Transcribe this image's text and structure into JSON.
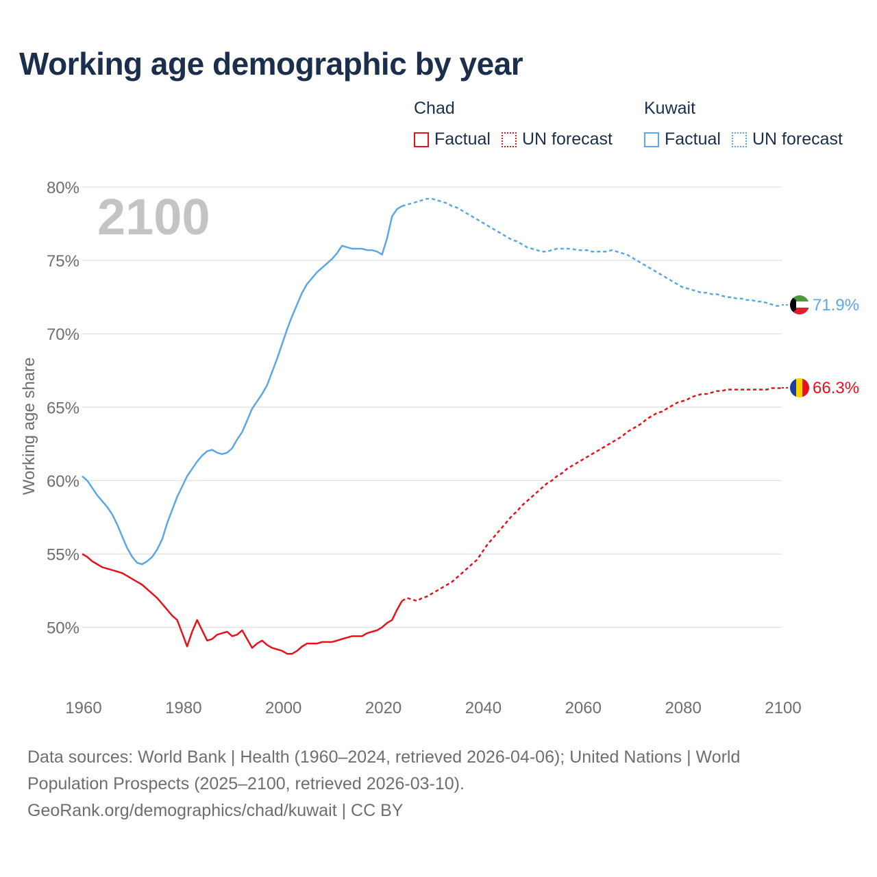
{
  "title": "Working age demographic by year",
  "legend": {
    "groups": [
      {
        "name": "Chad",
        "color": "#e8101a",
        "factual": "Factual",
        "forecast": "UN forecast"
      },
      {
        "name": "Kuwait",
        "color": "#5ba7e4",
        "factual": "Factual",
        "forecast": "UN forecast"
      }
    ]
  },
  "year_watermark": "2100",
  "footer": {
    "line1": "Data sources: World Bank | Health (1960–2024, retrieved 2026-04-06); United Nations | World",
    "line2": "Population Prospects (2025–2100, retrieved 2026-03-10).",
    "line3": "GeoRank.org/demographics/chad/kuwait | CC BY"
  },
  "chart_data": {
    "type": "line",
    "title": "Working age demographic by year",
    "xlabel": "",
    "ylabel": "Working age share",
    "xlim": [
      1960,
      2100
    ],
    "ylim": [
      45.5,
      80
    ],
    "x_ticks": [
      1960,
      1980,
      2000,
      2020,
      2040,
      2060,
      2080,
      2100
    ],
    "x_tick_labels": [
      "1960",
      "1980",
      "2000",
      "2020",
      "2040",
      "2060",
      "2080",
      "2100"
    ],
    "y_ticks": [
      50,
      55,
      60,
      65,
      70,
      75,
      80
    ],
    "y_tick_labels": [
      "50%",
      "55%",
      "60%",
      "65%",
      "70%",
      "75%",
      "80%"
    ],
    "grid": true,
    "factual_end_year": 2024,
    "series": [
      {
        "name": "Chad",
        "color": "#e8101a",
        "end_label": "66.3%",
        "flag": "chad",
        "points": [
          [
            1960,
            55.0
          ],
          [
            1961,
            54.8
          ],
          [
            1962,
            54.5
          ],
          [
            1963,
            54.3
          ],
          [
            1964,
            54.1
          ],
          [
            1965,
            54.0
          ],
          [
            1966,
            53.9
          ],
          [
            1967,
            53.8
          ],
          [
            1968,
            53.7
          ],
          [
            1969,
            53.5
          ],
          [
            1970,
            53.3
          ],
          [
            1971,
            53.1
          ],
          [
            1972,
            52.9
          ],
          [
            1973,
            52.6
          ],
          [
            1974,
            52.3
          ],
          [
            1975,
            52.0
          ],
          [
            1976,
            51.6
          ],
          [
            1977,
            51.2
          ],
          [
            1978,
            50.8
          ],
          [
            1979,
            50.5
          ],
          [
            1980,
            49.6
          ],
          [
            1981,
            48.7
          ],
          [
            1982,
            49.7
          ],
          [
            1983,
            50.5
          ],
          [
            1984,
            49.8
          ],
          [
            1985,
            49.1
          ],
          [
            1986,
            49.2
          ],
          [
            1987,
            49.5
          ],
          [
            1988,
            49.6
          ],
          [
            1989,
            49.7
          ],
          [
            1990,
            49.4
          ],
          [
            1991,
            49.5
          ],
          [
            1992,
            49.8
          ],
          [
            1993,
            49.2
          ],
          [
            1994,
            48.6
          ],
          [
            1995,
            48.9
          ],
          [
            1996,
            49.1
          ],
          [
            1997,
            48.8
          ],
          [
            1998,
            48.6
          ],
          [
            1999,
            48.5
          ],
          [
            2000,
            48.4
          ],
          [
            2001,
            48.2
          ],
          [
            2002,
            48.2
          ],
          [
            2003,
            48.4
          ],
          [
            2004,
            48.7
          ],
          [
            2005,
            48.9
          ],
          [
            2006,
            48.9
          ],
          [
            2007,
            48.9
          ],
          [
            2008,
            49.0
          ],
          [
            2009,
            49.0
          ],
          [
            2010,
            49.0
          ],
          [
            2011,
            49.1
          ],
          [
            2012,
            49.2
          ],
          [
            2013,
            49.3
          ],
          [
            2014,
            49.4
          ],
          [
            2015,
            49.4
          ],
          [
            2016,
            49.4
          ],
          [
            2017,
            49.6
          ],
          [
            2018,
            49.7
          ],
          [
            2019,
            49.8
          ],
          [
            2020,
            50.0
          ],
          [
            2021,
            50.3
          ],
          [
            2022,
            50.5
          ],
          [
            2023,
            51.2
          ],
          [
            2024,
            51.8
          ],
          [
            2025,
            52.0
          ],
          [
            2026,
            51.9
          ],
          [
            2027,
            51.8
          ],
          [
            2028,
            52.0
          ],
          [
            2029,
            52.1
          ],
          [
            2030,
            52.3
          ],
          [
            2031,
            52.5
          ],
          [
            2032,
            52.7
          ],
          [
            2033,
            52.9
          ],
          [
            2034,
            53.1
          ],
          [
            2035,
            53.4
          ],
          [
            2036,
            53.7
          ],
          [
            2037,
            54.0
          ],
          [
            2038,
            54.3
          ],
          [
            2039,
            54.6
          ],
          [
            2040,
            55.1
          ],
          [
            2041,
            55.6
          ],
          [
            2042,
            56.0
          ],
          [
            2043,
            56.4
          ],
          [
            2044,
            56.8
          ],
          [
            2045,
            57.2
          ],
          [
            2046,
            57.6
          ],
          [
            2047,
            57.9
          ],
          [
            2048,
            58.3
          ],
          [
            2049,
            58.6
          ],
          [
            2050,
            58.9
          ],
          [
            2051,
            59.2
          ],
          [
            2052,
            59.5
          ],
          [
            2053,
            59.8
          ],
          [
            2054,
            60.0
          ],
          [
            2055,
            60.3
          ],
          [
            2056,
            60.5
          ],
          [
            2057,
            60.8
          ],
          [
            2058,
            61.0
          ],
          [
            2059,
            61.2
          ],
          [
            2060,
            61.4
          ],
          [
            2061,
            61.6
          ],
          [
            2062,
            61.8
          ],
          [
            2063,
            62.0
          ],
          [
            2064,
            62.2
          ],
          [
            2065,
            62.4
          ],
          [
            2066,
            62.6
          ],
          [
            2067,
            62.8
          ],
          [
            2068,
            63.0
          ],
          [
            2069,
            63.3
          ],
          [
            2070,
            63.5
          ],
          [
            2071,
            63.7
          ],
          [
            2072,
            63.9
          ],
          [
            2073,
            64.2
          ],
          [
            2074,
            64.4
          ],
          [
            2075,
            64.6
          ],
          [
            2076,
            64.7
          ],
          [
            2077,
            64.9
          ],
          [
            2078,
            65.1
          ],
          [
            2079,
            65.3
          ],
          [
            2080,
            65.4
          ],
          [
            2081,
            65.5
          ],
          [
            2082,
            65.7
          ],
          [
            2083,
            65.8
          ],
          [
            2084,
            65.9
          ],
          [
            2085,
            65.9
          ],
          [
            2086,
            66.0
          ],
          [
            2087,
            66.1
          ],
          [
            2088,
            66.1
          ],
          [
            2089,
            66.2
          ],
          [
            2090,
            66.2
          ],
          [
            2091,
            66.2
          ],
          [
            2092,
            66.2
          ],
          [
            2093,
            66.2
          ],
          [
            2094,
            66.2
          ],
          [
            2095,
            66.2
          ],
          [
            2096,
            66.2
          ],
          [
            2097,
            66.2
          ],
          [
            2098,
            66.3
          ],
          [
            2099,
            66.3
          ],
          [
            2100,
            66.3
          ]
        ]
      },
      {
        "name": "Kuwait",
        "color": "#5ba7e4",
        "end_label": "71.9%",
        "flag": "kuwait",
        "points": [
          [
            1960,
            60.3
          ],
          [
            1961,
            60.0
          ],
          [
            1962,
            59.5
          ],
          [
            1963,
            59.0
          ],
          [
            1964,
            58.6
          ],
          [
            1965,
            58.2
          ],
          [
            1966,
            57.7
          ],
          [
            1967,
            57.0
          ],
          [
            1968,
            56.2
          ],
          [
            1969,
            55.4
          ],
          [
            1970,
            54.8
          ],
          [
            1971,
            54.4
          ],
          [
            1972,
            54.3
          ],
          [
            1973,
            54.5
          ],
          [
            1974,
            54.8
          ],
          [
            1975,
            55.3
          ],
          [
            1976,
            56.0
          ],
          [
            1977,
            57.1
          ],
          [
            1978,
            58.0
          ],
          [
            1979,
            58.9
          ],
          [
            1980,
            59.6
          ],
          [
            1981,
            60.3
          ],
          [
            1982,
            60.8
          ],
          [
            1983,
            61.3
          ],
          [
            1984,
            61.7
          ],
          [
            1985,
            62.0
          ],
          [
            1986,
            62.1
          ],
          [
            1987,
            61.9
          ],
          [
            1988,
            61.8
          ],
          [
            1989,
            61.9
          ],
          [
            1990,
            62.2
          ],
          [
            1991,
            62.8
          ],
          [
            1992,
            63.3
          ],
          [
            1993,
            64.1
          ],
          [
            1994,
            64.9
          ],
          [
            1995,
            65.4
          ],
          [
            1996,
            65.9
          ],
          [
            1997,
            66.5
          ],
          [
            1998,
            67.4
          ],
          [
            1999,
            68.3
          ],
          [
            2000,
            69.3
          ],
          [
            2001,
            70.3
          ],
          [
            2002,
            71.2
          ],
          [
            2003,
            72.0
          ],
          [
            2004,
            72.8
          ],
          [
            2005,
            73.4
          ],
          [
            2006,
            73.8
          ],
          [
            2007,
            74.2
          ],
          [
            2008,
            74.5
          ],
          [
            2009,
            74.8
          ],
          [
            2010,
            75.1
          ],
          [
            2011,
            75.5
          ],
          [
            2012,
            76.0
          ],
          [
            2013,
            75.9
          ],
          [
            2014,
            75.8
          ],
          [
            2015,
            75.8
          ],
          [
            2016,
            75.8
          ],
          [
            2017,
            75.7
          ],
          [
            2018,
            75.7
          ],
          [
            2019,
            75.6
          ],
          [
            2020,
            75.4
          ],
          [
            2021,
            76.5
          ],
          [
            2022,
            78.0
          ],
          [
            2023,
            78.5
          ],
          [
            2024,
            78.7
          ],
          [
            2025,
            78.8
          ],
          [
            2026,
            78.9
          ],
          [
            2027,
            79.0
          ],
          [
            2028,
            79.1
          ],
          [
            2029,
            79.2
          ],
          [
            2030,
            79.2
          ],
          [
            2031,
            79.1
          ],
          [
            2032,
            79.0
          ],
          [
            2033,
            78.9
          ],
          [
            2034,
            78.7
          ],
          [
            2035,
            78.6
          ],
          [
            2036,
            78.4
          ],
          [
            2037,
            78.2
          ],
          [
            2038,
            78.0
          ],
          [
            2039,
            77.8
          ],
          [
            2040,
            77.6
          ],
          [
            2041,
            77.4
          ],
          [
            2042,
            77.2
          ],
          [
            2043,
            77.0
          ],
          [
            2044,
            76.8
          ],
          [
            2045,
            76.6
          ],
          [
            2046,
            76.4
          ],
          [
            2047,
            76.3
          ],
          [
            2048,
            76.1
          ],
          [
            2049,
            75.9
          ],
          [
            2050,
            75.8
          ],
          [
            2051,
            75.7
          ],
          [
            2052,
            75.6
          ],
          [
            2053,
            75.6
          ],
          [
            2054,
            75.7
          ],
          [
            2055,
            75.8
          ],
          [
            2056,
            75.8
          ],
          [
            2057,
            75.8
          ],
          [
            2058,
            75.8
          ],
          [
            2059,
            75.7
          ],
          [
            2060,
            75.7
          ],
          [
            2061,
            75.7
          ],
          [
            2062,
            75.6
          ],
          [
            2063,
            75.6
          ],
          [
            2064,
            75.6
          ],
          [
            2065,
            75.6
          ],
          [
            2066,
            75.7
          ],
          [
            2067,
            75.6
          ],
          [
            2068,
            75.5
          ],
          [
            2069,
            75.4
          ],
          [
            2070,
            75.2
          ],
          [
            2071,
            75.0
          ],
          [
            2072,
            74.8
          ],
          [
            2073,
            74.6
          ],
          [
            2074,
            74.4
          ],
          [
            2075,
            74.2
          ],
          [
            2076,
            74.0
          ],
          [
            2077,
            73.8
          ],
          [
            2078,
            73.6
          ],
          [
            2079,
            73.4
          ],
          [
            2080,
            73.2
          ],
          [
            2081,
            73.1
          ],
          [
            2082,
            73.0
          ],
          [
            2083,
            72.9
          ],
          [
            2084,
            72.8
          ],
          [
            2085,
            72.8
          ],
          [
            2086,
            72.7
          ],
          [
            2087,
            72.7
          ],
          [
            2088,
            72.6
          ],
          [
            2089,
            72.5
          ],
          [
            2090,
            72.5
          ],
          [
            2091,
            72.4
          ],
          [
            2092,
            72.4
          ],
          [
            2093,
            72.3
          ],
          [
            2094,
            72.3
          ],
          [
            2095,
            72.2
          ],
          [
            2096,
            72.2
          ],
          [
            2097,
            72.1
          ],
          [
            2098,
            72.0
          ],
          [
            2099,
            71.9
          ],
          [
            2100,
            71.9
          ]
        ]
      }
    ]
  }
}
